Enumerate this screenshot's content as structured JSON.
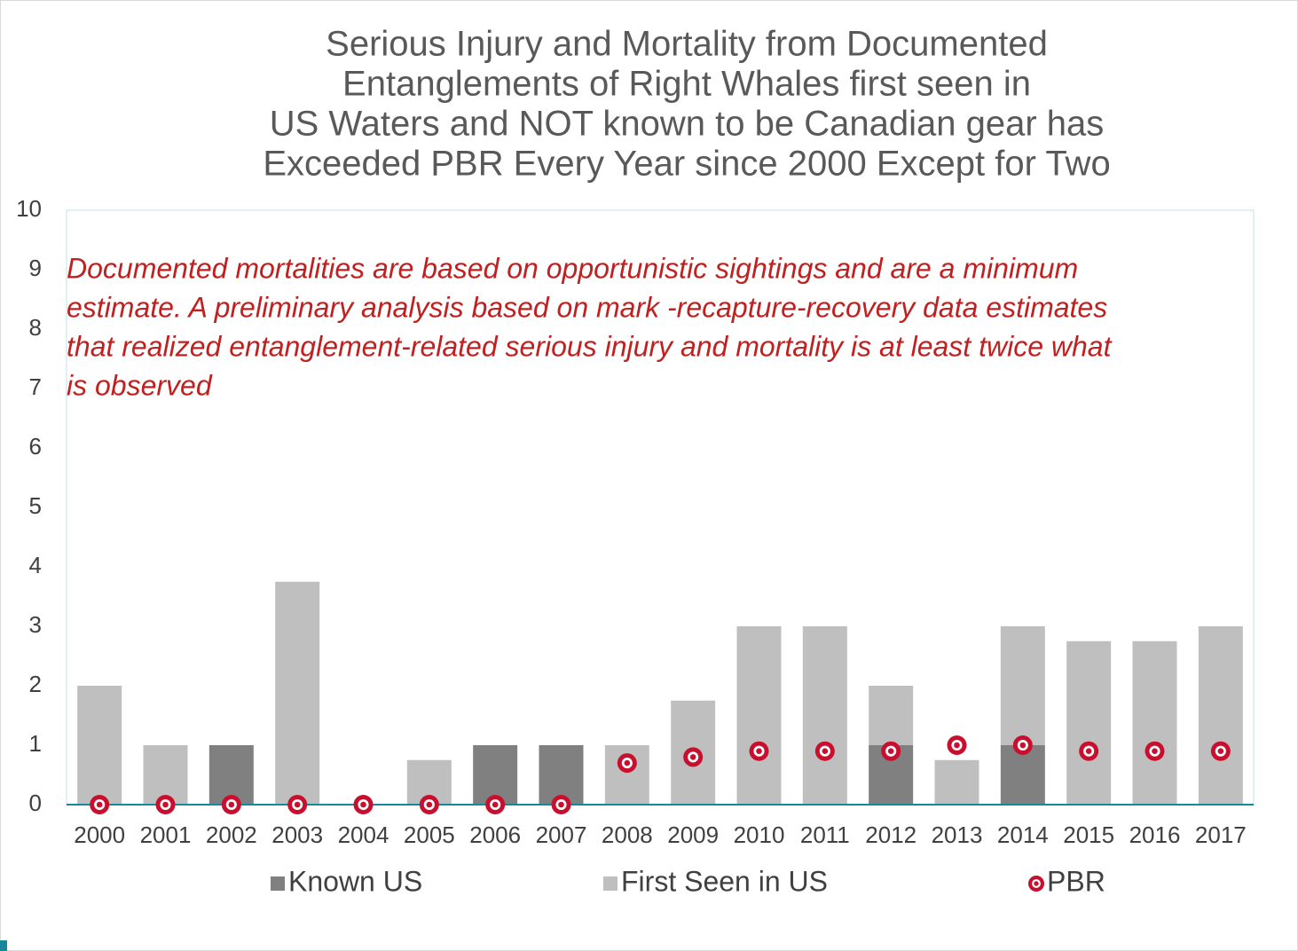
{
  "chart_data": {
    "type": "bar",
    "title": [
      "Serious Injury and Mortality from Documented",
      "Entanglements of Right Whales first seen in",
      "US Waters and NOT known to be Canadian gear has",
      "Exceeded PBR Every Year since 2000 Except for Two"
    ],
    "annotation": [
      "Documented mortalities are based on opportunistic sightings and are a minimum",
      "estimate. A preliminary analysis based on mark -recapture-recovery data estimates",
      "that realized entanglement-related serious injury and mortality is at least twice what",
      "is observed"
    ],
    "categories": [
      "2000",
      "2001",
      "2002",
      "2003",
      "2004",
      "2005",
      "2006",
      "2007",
      "2008",
      "2009",
      "2010",
      "2011",
      "2012",
      "2013",
      "2014",
      "2015",
      "2016",
      "2017"
    ],
    "stacked": true,
    "series": [
      {
        "name": "Known US",
        "color": "#808080",
        "values": [
          0,
          0,
          1,
          0,
          0,
          0,
          1,
          1,
          0,
          0,
          0,
          0,
          1,
          0,
          1,
          0,
          0,
          0
        ]
      },
      {
        "name": "First Seen in US",
        "color": "#bfbfbf",
        "values": [
          2,
          1,
          0,
          3.75,
          0,
          0.75,
          0,
          0,
          1,
          1.75,
          3,
          3,
          1,
          0.75,
          2,
          2.75,
          2.75,
          3
        ]
      },
      {
        "name": "PBR",
        "color": "#c8102e",
        "marker": true,
        "values": [
          0,
          0,
          0,
          0,
          0,
          0,
          0,
          0,
          0.7,
          0.8,
          0.9,
          0.9,
          0.9,
          1,
          1,
          0.9,
          0.9,
          0.9
        ]
      }
    ],
    "ylim": [
      0,
      10
    ],
    "yticks": [
      0,
      1,
      2,
      3,
      4,
      5,
      6,
      7,
      8,
      9,
      10
    ],
    "grid": false,
    "legend": "bottom"
  }
}
